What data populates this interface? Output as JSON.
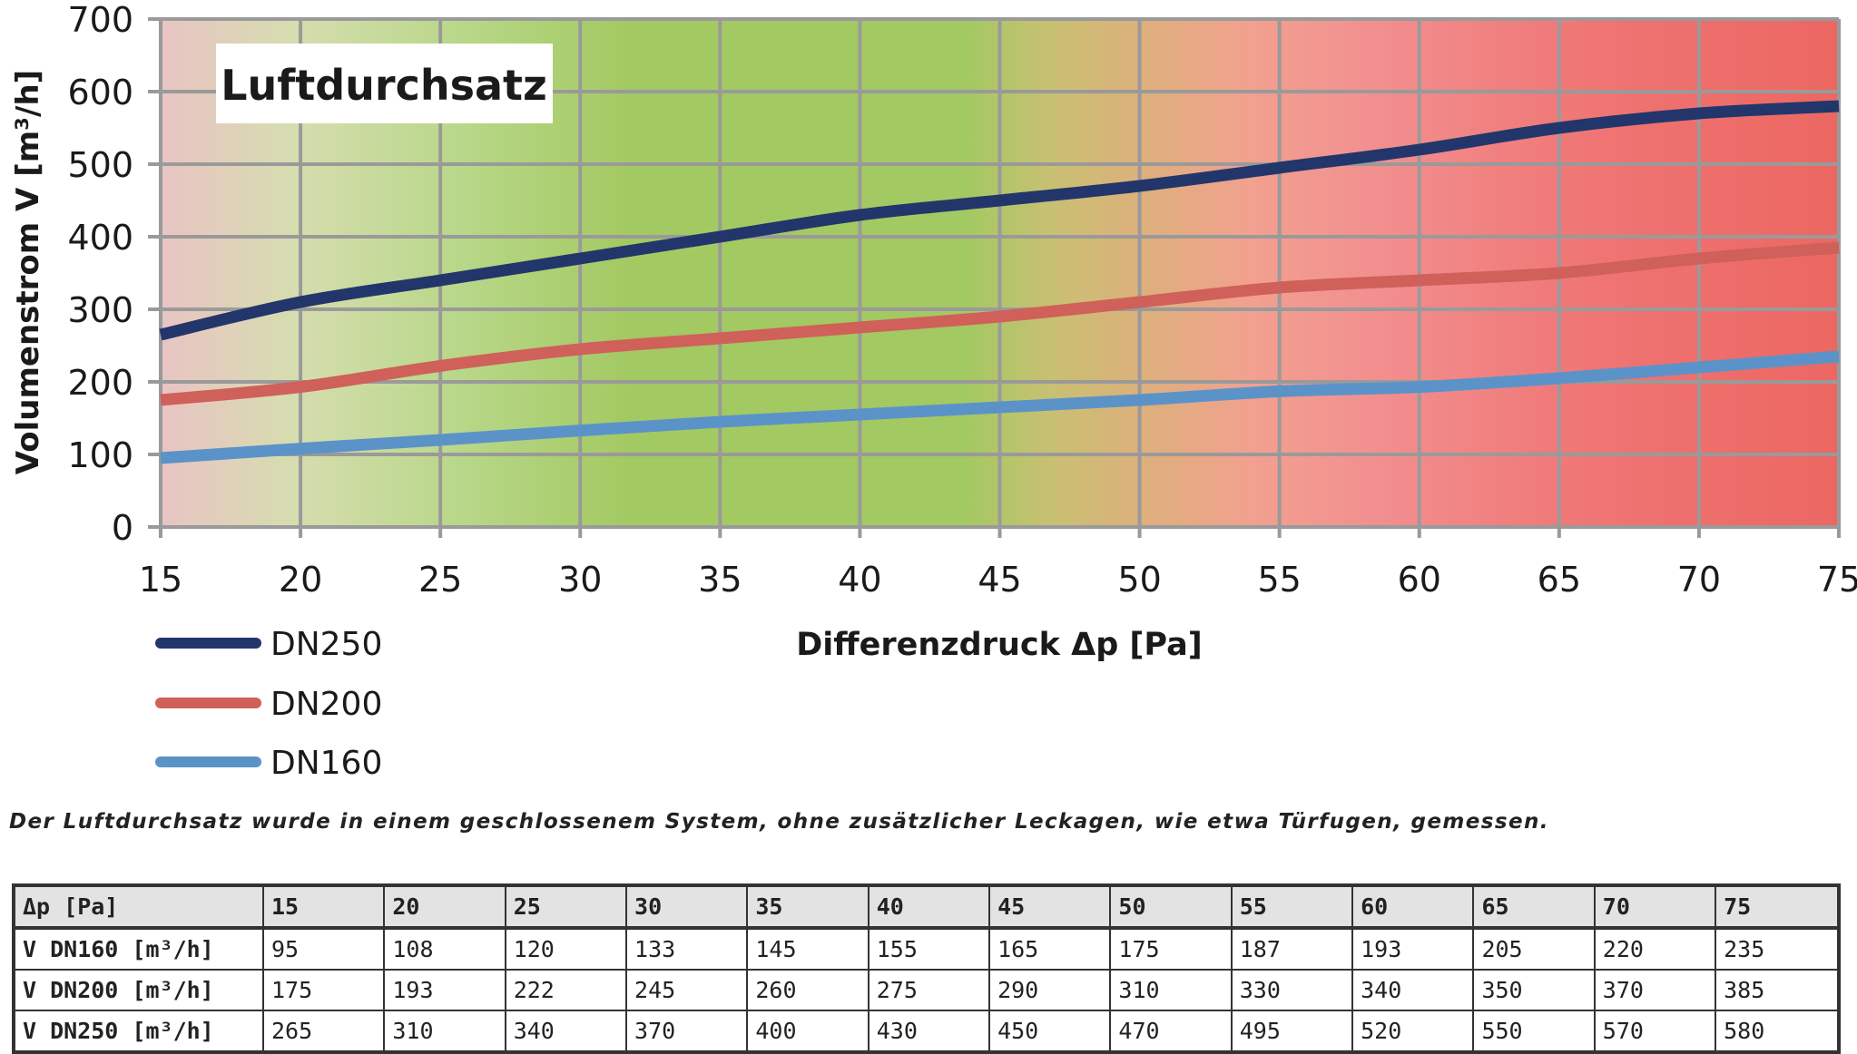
{
  "chart_data": {
    "type": "line",
    "title": "Luftdurchsatz",
    "xlabel": "Differenzdruck Δp [Pa]",
    "ylabel": "Volumenstrom V [m³/h]",
    "x": [
      15,
      20,
      25,
      30,
      35,
      40,
      45,
      50,
      55,
      60,
      65,
      70,
      75
    ],
    "xlim": [
      15,
      75
    ],
    "ylim": [
      0,
      700
    ],
    "yticks": [
      0,
      100,
      200,
      300,
      400,
      500,
      600,
      700
    ],
    "grid": true,
    "legend_position": "bottom-left",
    "background_zones": "gradient pink → green (≈25–45 Pa) → red (≥55 Pa)",
    "series": [
      {
        "name": "DN250",
        "color": "#22366b",
        "values": [
          265,
          310,
          340,
          370,
          400,
          430,
          450,
          470,
          495,
          520,
          550,
          570,
          580
        ]
      },
      {
        "name": "DN200",
        "color": "#d0605a",
        "values": [
          175,
          193,
          222,
          245,
          260,
          275,
          290,
          310,
          330,
          340,
          350,
          370,
          385
        ]
      },
      {
        "name": "DN160",
        "color": "#5b93c9",
        "values": [
          95,
          108,
          120,
          133,
          145,
          155,
          165,
          175,
          187,
          193,
          205,
          220,
          235
        ]
      }
    ]
  },
  "note": "Der Luftdurchsatz wurde in einem geschlossenem System, ohne zusätzlicher Leckagen, wie etwa Türfugen, gemessen.",
  "table": {
    "header_label": "Δp [Pa]",
    "columns": [
      "15",
      "20",
      "25",
      "30",
      "35",
      "40",
      "45",
      "50",
      "55",
      "60",
      "65",
      "70",
      "75"
    ],
    "rows": [
      {
        "label": "V DN160 [m³/h]",
        "values": [
          "95",
          "108",
          "120",
          "133",
          "145",
          "155",
          "165",
          "175",
          "187",
          "193",
          "205",
          "220",
          "235"
        ]
      },
      {
        "label": "V DN200 [m³/h]",
        "values": [
          "175",
          "193",
          "222",
          "245",
          "260",
          "275",
          "290",
          "310",
          "330",
          "340",
          "350",
          "370",
          "385"
        ]
      },
      {
        "label": "V DN250 [m³/h]",
        "values": [
          "265",
          "310",
          "340",
          "370",
          "400",
          "430",
          "450",
          "470",
          "495",
          "520",
          "550",
          "570",
          "580"
        ]
      }
    ]
  },
  "colors": {
    "grid": "#9a9a9a",
    "zone_pink_left": "#e9c4c4",
    "zone_green": "#a3c962",
    "zone_red": "#ec6762"
  }
}
